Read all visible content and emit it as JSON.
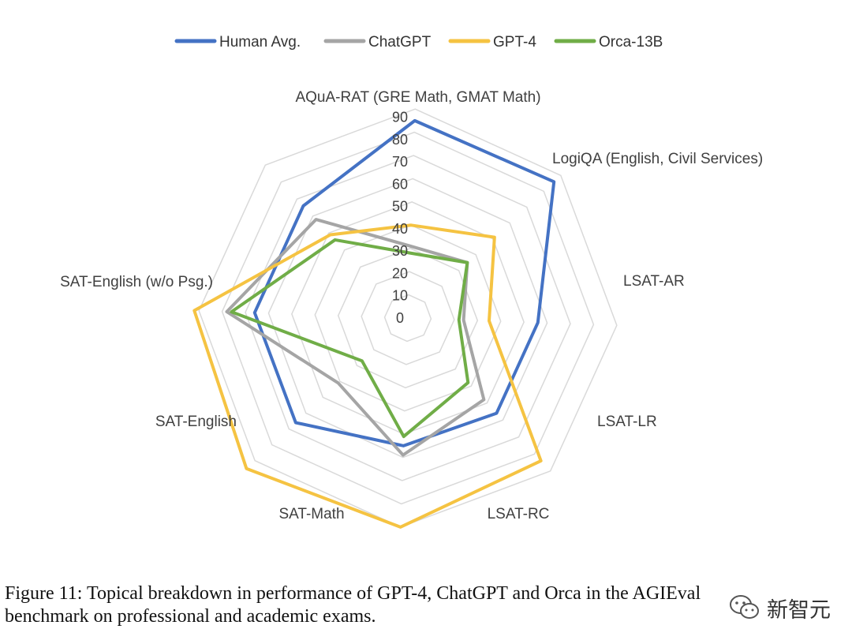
{
  "chart_data": {
    "type": "radar",
    "axes": [
      "AQuA-RAT (GRE Math, GMAT Math)",
      "LogiQA (English, Civil Services)",
      "LSAT-AR",
      "LSAT-LR",
      "LSAT-RC",
      "SAT-Math",
      "SAT-English",
      "SAT-English (w/o Psg.)"
    ],
    "ticks": [
      "0",
      "10",
      "20",
      "30",
      "40",
      "50",
      "60",
      "70",
      "80",
      "90"
    ],
    "range": [
      0,
      90
    ],
    "grid": true,
    "legend_position": "top",
    "series": [
      {
        "name": "Human Avg.",
        "color": "#4472C4",
        "values": [
          85,
          86,
          56,
          56,
          55,
          66,
          66,
          66
        ]
      },
      {
        "name": "ChatGPT",
        "color": "#A5A5A5",
        "values": [
          31,
          35,
          24,
          48,
          59,
          41,
          78,
          58
        ]
      },
      {
        "name": "GPT-4",
        "color": "#F5C342",
        "values": [
          40,
          51,
          35,
          84,
          90,
          95,
          92,
          49
        ]
      },
      {
        "name": "Orca-13B",
        "color": "#70AD47",
        "values": [
          28,
          35,
          22,
          38,
          51,
          27,
          76,
          46
        ]
      }
    ]
  },
  "caption": {
    "line1": "Figure 11: Topical breakdown in performance of GPT-4, ChatGPT and Orca in the AGIEval",
    "line2": "benchmark on professional and academic exams."
  },
  "watermark": {
    "text": "新智元",
    "icon": "wechat-icon"
  }
}
